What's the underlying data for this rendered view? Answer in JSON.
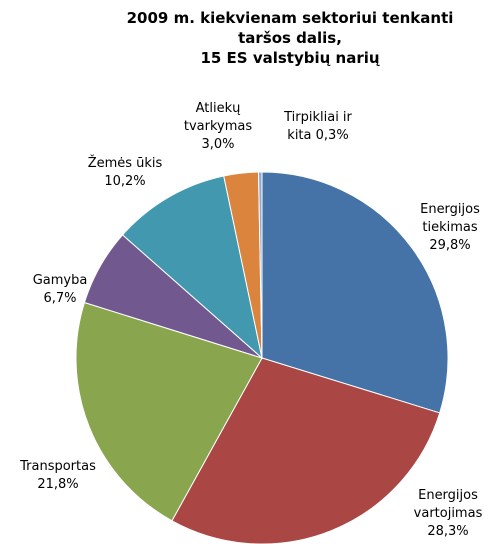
{
  "chart_data": {
    "type": "pie",
    "title": [
      "2009 m. kiekvienam sektoriui tenkanti",
      "taršos dalis,",
      "15 ES valstybių narių"
    ],
    "categories": [
      "Energijos tiekimas",
      "Energijos vartojimas",
      "Transportas",
      "Gamyba",
      "Žemės ūkis",
      "Atliekų tvarkymas",
      "Tirpikliai ir kita"
    ],
    "values": [
      29.8,
      28.3,
      21.8,
      6.7,
      10.2,
      3.0,
      0.3
    ],
    "value_labels": [
      "29,8%",
      "28,3%",
      "21,8%",
      "6,7%",
      "10,2%",
      "3,0%",
      "0,3%"
    ],
    "colors": [
      "#4572a7",
      "#aa4643",
      "#89a54e",
      "#71588f",
      "#4198af",
      "#db843d",
      "#93a9cf"
    ]
  }
}
